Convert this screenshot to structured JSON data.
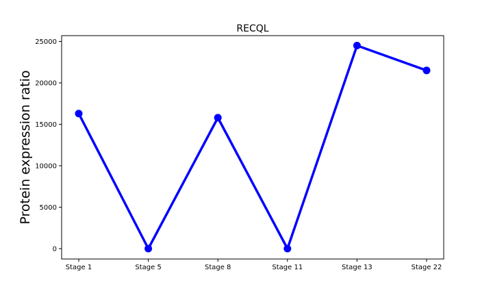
{
  "chart_data": {
    "type": "line",
    "title": "RECQL",
    "xlabel": "",
    "ylabel": "Protein expression ratio",
    "categories": [
      "Stage 1",
      "Stage 5",
      "Stage 8",
      "Stage 11",
      "Stage 13",
      "Stage 22"
    ],
    "series": [
      {
        "values": [
          16300,
          0,
          15800,
          0,
          24500,
          21500
        ],
        "color": "#0000ff"
      }
    ],
    "ylim": [
      -1250,
      25700
    ],
    "yticks": [
      0,
      5000,
      10000,
      15000,
      20000,
      25000
    ],
    "ytick_labels": [
      "0",
      "5000",
      "10000",
      "15000",
      "20000",
      "25000"
    ],
    "grid": false,
    "legend": "none"
  }
}
